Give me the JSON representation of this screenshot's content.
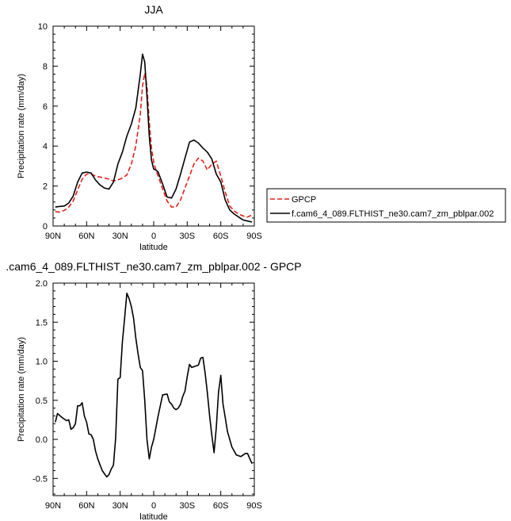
{
  "chart_data": [
    {
      "type": "line",
      "title": "JJA",
      "xlabel": "latitude",
      "ylabel": "Precipitation rate (mm/day)",
      "xlim": [
        90,
        -90
      ],
      "ylim": [
        0,
        10
      ],
      "xticks": [
        90,
        60,
        30,
        0,
        -30,
        -60,
        -90
      ],
      "xtick_labels": [
        "90N",
        "60N",
        "30N",
        "0",
        "30S",
        "60S",
        "90S"
      ],
      "yticks": [
        0,
        2,
        4,
        6,
        8,
        10
      ],
      "ytick_labels": [
        "0",
        "2",
        "4",
        "6",
        "8",
        "10"
      ],
      "legend": {
        "placement": "right-outside",
        "entries": [
          {
            "name": "GPCP",
            "color": "#e8201a",
            "style": "dashed"
          },
          {
            "name": "f.cam6_4_089.FLTHIST_ne30.cam7_zm_pblpar.002",
            "color": "#000000",
            "style": "solid"
          }
        ]
      },
      "series": [
        {
          "name": "GPCP",
          "color": "#e8201a",
          "style": "dashed",
          "x": [
            88,
            84,
            80,
            76,
            72,
            68,
            64,
            60,
            56,
            52,
            48,
            44,
            40,
            36,
            32,
            28,
            24,
            20,
            16,
            12,
            10,
            8,
            6,
            4,
            2,
            0,
            -2,
            -4,
            -8,
            -12,
            -16,
            -20,
            -24,
            -28,
            -32,
            -36,
            -40,
            -44,
            -48,
            -52,
            -56,
            -60,
            -64,
            -68,
            -72,
            -76,
            -80,
            -84,
            -88
          ],
          "y": [
            0.72,
            0.7,
            0.78,
            0.95,
            1.25,
            1.8,
            2.35,
            2.6,
            2.6,
            2.5,
            2.45,
            2.4,
            2.35,
            2.25,
            2.3,
            2.4,
            2.55,
            3.1,
            4.0,
            5.6,
            7.0,
            7.65,
            7.0,
            5.2,
            3.9,
            3.2,
            2.8,
            2.5,
            1.85,
            1.25,
            0.95,
            0.95,
            1.3,
            1.9,
            2.5,
            3.1,
            3.4,
            3.25,
            2.8,
            3.1,
            3.25,
            2.5,
            1.7,
            1.0,
            0.75,
            0.6,
            0.5,
            0.45,
            0.55
          ]
        },
        {
          "name": "f.cam6_4_089.FLTHIST_ne30.cam7_zm_pblpar.002",
          "color": "#000000",
          "style": "solid",
          "x": [
            88,
            84,
            80,
            76,
            72,
            68,
            64,
            60,
            56,
            52,
            48,
            44,
            40,
            36,
            32,
            28,
            24,
            20,
            16,
            12,
            10,
            8,
            6,
            4,
            2,
            0,
            -2,
            -4,
            -8,
            -12,
            -16,
            -20,
            -24,
            -28,
            -32,
            -36,
            -40,
            -44,
            -48,
            -52,
            -56,
            -60,
            -64,
            -68,
            -72,
            -76,
            -80,
            -84,
            -88
          ],
          "y": [
            0.95,
            0.98,
            1.0,
            1.15,
            1.5,
            2.2,
            2.65,
            2.7,
            2.65,
            2.3,
            2.05,
            1.9,
            1.85,
            2.2,
            3.1,
            3.7,
            4.5,
            5.1,
            5.9,
            7.6,
            8.6,
            8.2,
            6.5,
            4.5,
            3.3,
            2.85,
            2.8,
            2.7,
            2.1,
            1.45,
            1.4,
            1.85,
            2.6,
            3.4,
            4.2,
            4.3,
            4.15,
            3.9,
            3.7,
            3.35,
            2.6,
            2.2,
            1.3,
            0.8,
            0.6,
            0.45,
            0.3,
            0.25,
            0.2
          ]
        }
      ]
    },
    {
      "type": "line",
      "title": ".cam6_4_089.FLTHIST_ne30.cam7_zm_pblpar.002 - GPCP",
      "xlabel": "latitude",
      "ylabel": "Precipitation rate (mm/day)",
      "xlim": [
        90,
        -90
      ],
      "ylim": [
        -0.72,
        2.0
      ],
      "xticks": [
        90,
        60,
        30,
        0,
        -30,
        -60,
        -90
      ],
      "xtick_labels": [
        "90N",
        "60N",
        "30N",
        "0",
        "30S",
        "60S",
        "90S"
      ],
      "yticks": [
        -0.5,
        0,
        0.5,
        1.0,
        1.5,
        2.0
      ],
      "ytick_labels": [
        "-0.5",
        "0.0",
        "0.5",
        "1.0",
        "1.5",
        "2.0"
      ],
      "series": [
        {
          "color": "#000000",
          "style": "solid",
          "x": [
            88,
            86,
            82,
            78,
            76,
            74,
            72,
            70,
            68,
            66,
            64,
            62,
            60,
            58,
            56,
            54,
            52,
            50,
            46,
            42,
            40,
            38,
            36,
            34,
            32,
            30,
            28,
            26,
            24,
            22,
            20,
            18,
            16,
            14,
            12,
            10,
            8,
            6,
            4,
            2,
            0,
            -2,
            -4,
            -8,
            -12,
            -14,
            -16,
            -18,
            -20,
            -22,
            -24,
            -26,
            -28,
            -30,
            -32,
            -34,
            -36,
            -38,
            -40,
            -42,
            -44,
            -46,
            -48,
            -50,
            -52,
            -54,
            -56,
            -58,
            -60,
            -62,
            -64,
            -66,
            -68,
            -70,
            -74,
            -78,
            -82,
            -84,
            -86,
            -88
          ],
          "y": [
            0.22,
            0.33,
            0.28,
            0.24,
            0.25,
            0.13,
            0.15,
            0.2,
            0.43,
            0.43,
            0.47,
            0.3,
            0.22,
            0.07,
            0.06,
            0.0,
            -0.15,
            -0.25,
            -0.4,
            -0.48,
            -0.45,
            -0.38,
            -0.33,
            0.02,
            0.77,
            0.79,
            1.25,
            1.55,
            1.87,
            1.8,
            1.7,
            1.55,
            1.3,
            1.1,
            0.92,
            0.88,
            0.5,
            0.0,
            -0.25,
            -0.1,
            0.0,
            0.15,
            0.3,
            0.57,
            0.58,
            0.48,
            0.45,
            0.4,
            0.38,
            0.4,
            0.45,
            0.55,
            0.62,
            0.8,
            0.96,
            0.92,
            0.93,
            0.94,
            0.95,
            1.04,
            1.05,
            0.85,
            0.6,
            0.3,
            0.05,
            -0.17,
            0.15,
            0.6,
            0.82,
            0.45,
            0.28,
            0.1,
            0.0,
            -0.1,
            -0.2,
            -0.22,
            -0.18,
            -0.18,
            -0.25,
            -0.31
          ]
        }
      ]
    }
  ]
}
